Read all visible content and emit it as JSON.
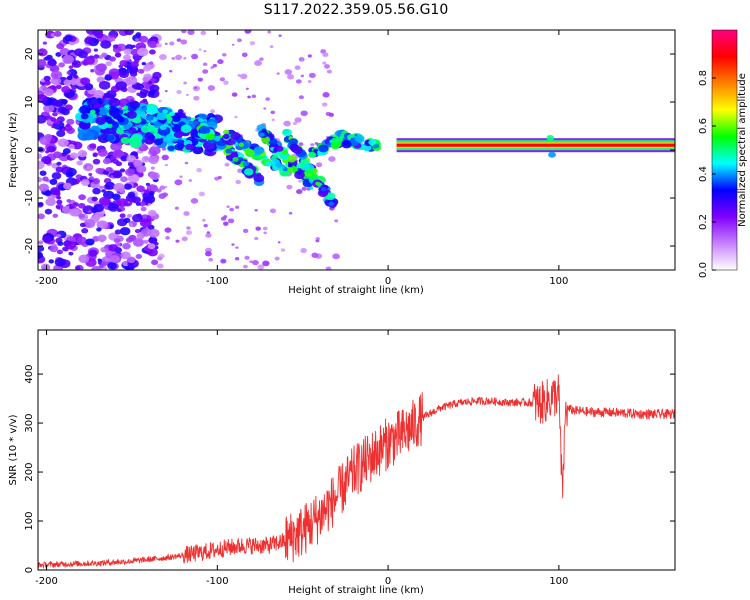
{
  "title": "S117.2022.359.05.56.G10",
  "chart_data": [
    {
      "type": "heatmap",
      "xlabel": "Height of straight line (km)",
      "ylabel": "Frequency (Hz)",
      "xlim": [
        -205,
        168
      ],
      "ylim": [
        -25,
        25
      ],
      "xticks": [
        -200,
        -100,
        0,
        100
      ],
      "yticks": [
        -20,
        -10,
        0,
        10,
        20
      ],
      "colorbar": {
        "label": "Normalized spectral amplitude",
        "range": [
          0,
          1
        ],
        "ticks": [
          "0.0",
          "0.2",
          "0.4",
          "0.6",
          "0.8"
        ],
        "tick_values": [
          0,
          0.2,
          0.4,
          0.6,
          0.8
        ],
        "colormap": [
          "#ffffff",
          "#c880ff",
          "#8000ff",
          "#0000ff",
          "#00ffff",
          "#00ff00",
          "#ffff00",
          "#ff8000",
          "#ff0000",
          "#ff0080"
        ]
      },
      "features": [
        {
          "name": "carrier-line",
          "x": [
            5,
            168
          ],
          "y": 1,
          "value": 1.0
        },
        {
          "name": "diverging-branches",
          "x": [
            -180,
            -30
          ],
          "y_start": 7,
          "y_end": -10
        },
        {
          "name": "background-noise",
          "x": [
            -205,
            -140
          ],
          "y": [
            -25,
            25
          ]
        }
      ]
    },
    {
      "type": "line",
      "xlabel": "Height of straight line (km)",
      "ylabel": "SNR (10 * v/v)",
      "xlim": [
        -205,
        168
      ],
      "ylim": [
        0,
        490
      ],
      "xticks": [
        -200,
        -100,
        0,
        100
      ],
      "yticks": [
        0,
        100,
        200,
        300,
        400
      ],
      "grid": false,
      "series": [
        {
          "color": "#ef3030",
          "x": [
            -205,
            -190,
            -170,
            -150,
            -130,
            -110,
            -95,
            -85,
            -70,
            -60,
            -50,
            -40,
            -30,
            -20,
            -10,
            0,
            10,
            20,
            30,
            40,
            50,
            60,
            70,
            80,
            90,
            95,
            100,
            102,
            104,
            110,
            120,
            130,
            140,
            150,
            160,
            168
          ],
          "y": [
            10,
            12,
            14,
            18,
            25,
            35,
            45,
            50,
            50,
            60,
            80,
            110,
            150,
            200,
            230,
            260,
            280,
            310,
            330,
            340,
            345,
            345,
            342,
            342,
            340,
            350,
            360,
            150,
            330,
            325,
            322,
            322,
            320,
            318,
            318,
            318
          ]
        }
      ]
    }
  ]
}
